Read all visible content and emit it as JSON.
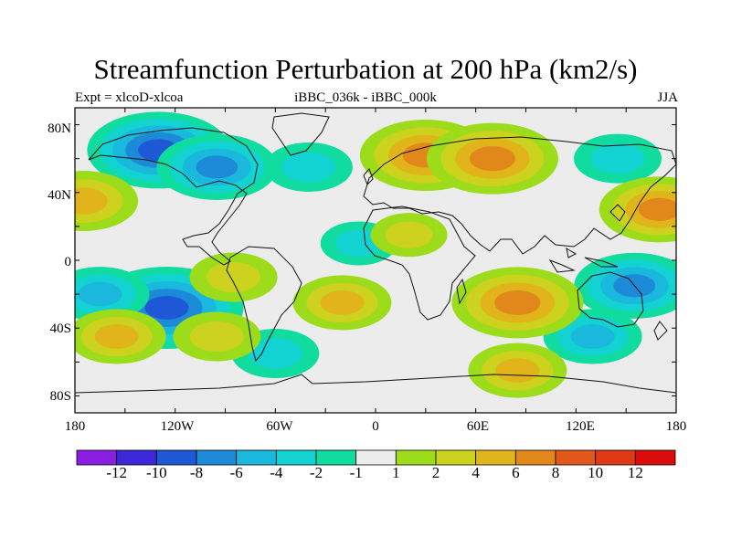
{
  "title": "Streamfunction Perturbation at 200 hPa (km2/s)",
  "subtitle_left": "Expt = xlcoD-xlcoa",
  "subtitle_center": "iBBC_036k - iBBC_000k",
  "subtitle_right": "JJA",
  "lat_labels": [
    "80N",
    "40N",
    "0",
    "40S",
    "80S"
  ],
  "lon_labels": [
    "180",
    "120W",
    "60W",
    "0",
    "60E",
    "120E",
    "180"
  ],
  "colorbar": {
    "labels": [
      "-12",
      "-10",
      "-8",
      "-6",
      "-4",
      "-2",
      "-1",
      "1",
      "2",
      "4",
      "6",
      "8",
      "10",
      "12"
    ],
    "colors": [
      "#8a1ee0",
      "#3c28d8",
      "#1f58d6",
      "#1c8ad6",
      "#1ab8dc",
      "#12d2d2",
      "#10dca0",
      "#ececec",
      "#9cdc1a",
      "#ccd21e",
      "#e0b41a",
      "#e2881a",
      "#e2581a",
      "#e03a14",
      "#dc0c0c"
    ]
  },
  "map_data": {
    "type": "filled-contour",
    "projection": "cylindrical-equidistant",
    "lon_range": [
      -180,
      180
    ],
    "lat_range": [
      -90,
      90
    ],
    "units": "km2/s",
    "anomaly_centers": [
      {
        "lon": -130,
        "lat": 65,
        "value": -8
      },
      {
        "lon": -95,
        "lat": 55,
        "value": -6
      },
      {
        "lon": -40,
        "lat": 55,
        "value": -3
      },
      {
        "lon": -125,
        "lat": -28,
        "value": -9
      },
      {
        "lon": -165,
        "lat": -20,
        "value": -4
      },
      {
        "lon": 155,
        "lat": -15,
        "value": -6
      },
      {
        "lon": 130,
        "lat": -45,
        "value": -4
      },
      {
        "lon": -60,
        "lat": -55,
        "value": -3
      },
      {
        "lon": -10,
        "lat": 10,
        "value": -2
      },
      {
        "lon": 145,
        "lat": 60,
        "value": -3
      },
      {
        "lon": 30,
        "lat": 62,
        "value": 7
      },
      {
        "lon": 70,
        "lat": 60,
        "value": 7
      },
      {
        "lon": 170,
        "lat": 30,
        "value": 6
      },
      {
        "lon": -175,
        "lat": 35,
        "value": 5
      },
      {
        "lon": 85,
        "lat": -25,
        "value": 7
      },
      {
        "lon": -85,
        "lat": -10,
        "value": 3
      },
      {
        "lon": -155,
        "lat": -45,
        "value": 4
      },
      {
        "lon": -20,
        "lat": -25,
        "value": 4
      },
      {
        "lon": 85,
        "lat": -65,
        "value": 4
      },
      {
        "lon": 20,
        "lat": 15,
        "value": 2
      },
      {
        "lon": -95,
        "lat": -45,
        "value": 3
      }
    ]
  }
}
